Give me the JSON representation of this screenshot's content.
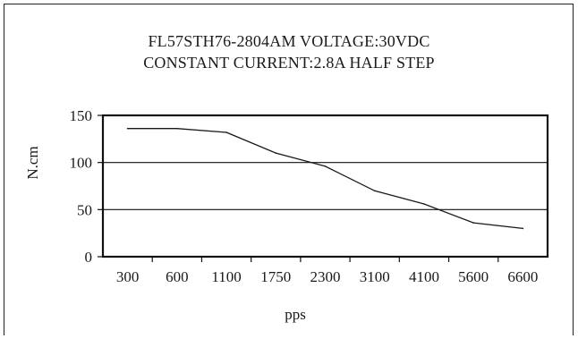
{
  "chart_data": {
    "type": "line",
    "title_lines": [
      "FL57STH76-2804AM  VOLTAGE:30VDC",
      "CONSTANT  CURRENT:2.8A HALF STEP"
    ],
    "xlabel": "pps",
    "ylabel": "N.cm",
    "categories": [
      "300",
      "600",
      "1100",
      "1750",
      "2300",
      "3100",
      "4100",
      "5600",
      "6600"
    ],
    "yticks": [
      0,
      50,
      100,
      150
    ],
    "ylim": [
      0,
      150
    ],
    "grid": true,
    "legend": "none",
    "series": [
      {
        "values": [
          136,
          136,
          132,
          110,
          96,
          70,
          56,
          36,
          30
        ]
      }
    ],
    "line_color": "#1a1a1a"
  }
}
